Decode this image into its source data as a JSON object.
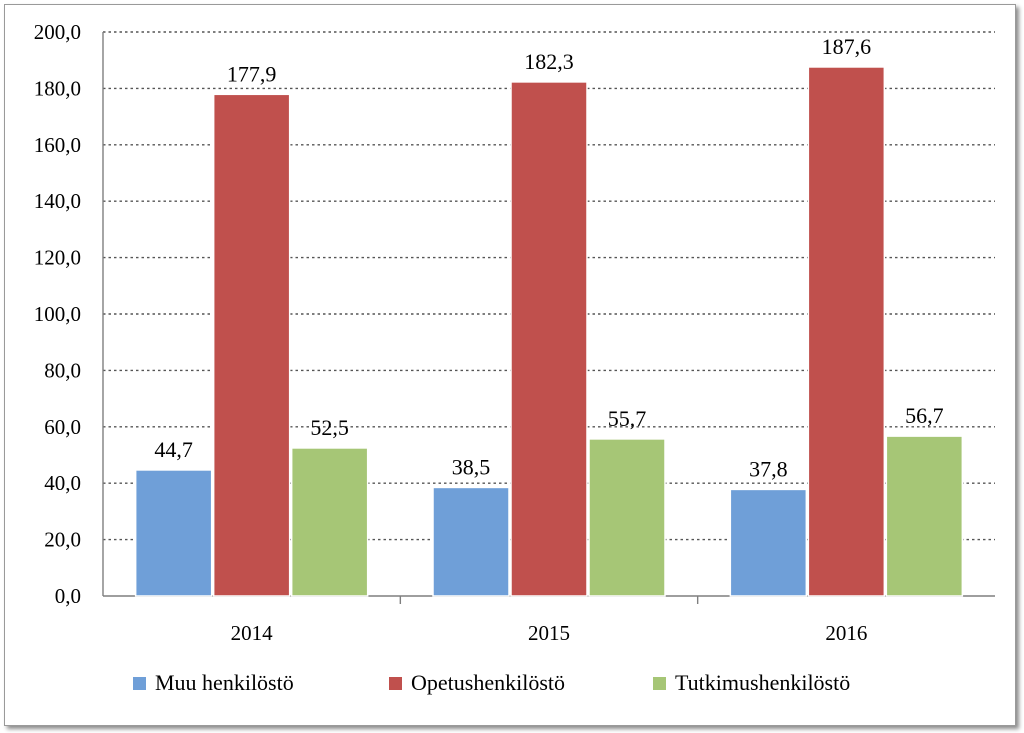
{
  "chart_data": {
    "type": "bar",
    "categories": [
      "2014",
      "2015",
      "2016"
    ],
    "series": [
      {
        "name": "Muu henkilöstö",
        "color": "#6f9fd8",
        "values": [
          44.7,
          38.5,
          37.8
        ],
        "labels": [
          "44,7",
          "38,5",
          "37,8"
        ]
      },
      {
        "name": "Opetushenkilöstö",
        "color": "#c0504d",
        "values": [
          177.9,
          182.3,
          187.6
        ],
        "labels": [
          "177,9",
          "182,3",
          "187,6"
        ]
      },
      {
        "name": "Tutkimushenkilöstö",
        "color": "#a6c676",
        "values": [
          52.5,
          55.7,
          56.7
        ],
        "labels": [
          "52,5",
          "55,7",
          "56,7"
        ]
      }
    ],
    "yticks": [
      "0,0",
      "20,0",
      "40,0",
      "60,0",
      "80,0",
      "100,0",
      "120,0",
      "140,0",
      "160,0",
      "180,0",
      "200,0"
    ],
    "ylim": [
      0,
      200
    ],
    "grid": true,
    "legend_position": "bottom"
  }
}
